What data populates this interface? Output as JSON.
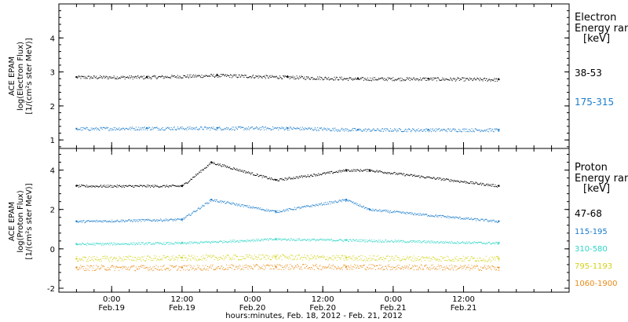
{
  "xlabel": "hours:minutes, Feb. 18, 2012 - Feb. 21, 2012",
  "x_ticks": [
    {
      "time": "0:00",
      "date": "Feb.19"
    },
    {
      "time": "12:00",
      "date": "Feb.19"
    },
    {
      "time": "0:00",
      "date": "Feb.20"
    },
    {
      "time": "12:00",
      "date": "Feb.20"
    },
    {
      "time": "0:00",
      "date": "Feb.21"
    },
    {
      "time": "12:00",
      "date": "Feb.21"
    }
  ],
  "chart_data": [
    {
      "type": "scatter",
      "panel": "electron",
      "ylabel": [
        "ACE EPAM",
        "log(Electron Flux)",
        "[1/(cm²s ster MeV)]"
      ],
      "yticks": [
        1,
        2,
        3,
        4
      ],
      "ylim": [
        0.75,
        5.0
      ],
      "xlim": [
        "2012-02-18 15:00",
        "2012-02-22 06:00"
      ],
      "legend_title": [
        "Electron",
        "Energy range",
        "[keV]"
      ],
      "legend_placement": "right",
      "series": [
        {
          "name": "38-53",
          "color": "#000000",
          "x": [
            "2012-02-18 18:00",
            "2012-02-19 06:00",
            "2012-02-19 18:00",
            "2012-02-20 06:00",
            "2012-02-20 18:00",
            "2012-02-21 06:00",
            "2012-02-21 18:00"
          ],
          "y": [
            2.85,
            2.85,
            2.9,
            2.85,
            2.8,
            2.8,
            2.78
          ]
        },
        {
          "name": "175-315",
          "color": "#1a7ccc",
          "x": [
            "2012-02-18 18:00",
            "2012-02-19 06:00",
            "2012-02-19 18:00",
            "2012-02-20 06:00",
            "2012-02-20 18:00",
            "2012-02-21 06:00",
            "2012-02-21 18:00"
          ],
          "y": [
            1.33,
            1.35,
            1.35,
            1.35,
            1.3,
            1.3,
            1.3
          ]
        }
      ]
    },
    {
      "type": "scatter",
      "panel": "proton",
      "ylabel": [
        "ACE EPAM",
        "log(Proton Flux)",
        "[1/(cm²s ster MeV)]"
      ],
      "yticks": [
        -2,
        0,
        2,
        4
      ],
      "ylim": [
        -2.2,
        5.1
      ],
      "xlim": [
        "2012-02-18 15:00",
        "2012-02-22 06:00"
      ],
      "legend_title": [
        "Proton",
        "Energy range",
        "[keV]"
      ],
      "legend_placement": "right",
      "series": [
        {
          "name": "47-68",
          "color": "#000000",
          "x": [
            "2012-02-18 18:00",
            "2012-02-19 12:00",
            "2012-02-19 17:00",
            "2012-02-20 04:00",
            "2012-02-20 16:00",
            "2012-02-20 20:00",
            "2012-02-21 18:00"
          ],
          "y": [
            3.2,
            3.2,
            4.4,
            3.5,
            4.0,
            4.0,
            3.2
          ]
        },
        {
          "name": "115-195",
          "color": "#1a7ccc",
          "x": [
            "2012-02-18 18:00",
            "2012-02-19 12:00",
            "2012-02-19 17:00",
            "2012-02-20 04:00",
            "2012-02-20 16:00",
            "2012-02-20 20:00",
            "2012-02-21 18:00"
          ],
          "y": [
            1.4,
            1.5,
            2.5,
            1.9,
            2.5,
            2.0,
            1.4
          ]
        },
        {
          "name": "310-580",
          "color": "#2fd6c6",
          "x": [
            "2012-02-18 18:00",
            "2012-02-19 12:00",
            "2012-02-20 04:00",
            "2012-02-20 16:00",
            "2012-02-21 18:00"
          ],
          "y": [
            0.25,
            0.3,
            0.5,
            0.45,
            0.3
          ]
        },
        {
          "name": "795-1193",
          "color": "#d2d21a",
          "x": [
            "2012-02-18 18:00",
            "2012-02-19 12:00",
            "2012-02-20 04:00",
            "2012-02-20 16:00",
            "2012-02-21 18:00"
          ],
          "y": [
            -0.5,
            -0.45,
            -0.4,
            -0.45,
            -0.5
          ]
        },
        {
          "name": "1060-1900",
          "color": "#e88c1a",
          "x": [
            "2012-02-18 18:00",
            "2012-02-19 12:00",
            "2012-02-20 04:00",
            "2012-02-20 16:00",
            "2012-02-21 18:00"
          ],
          "y": [
            -0.95,
            -0.95,
            -0.9,
            -0.9,
            -0.95
          ]
        }
      ]
    }
  ]
}
